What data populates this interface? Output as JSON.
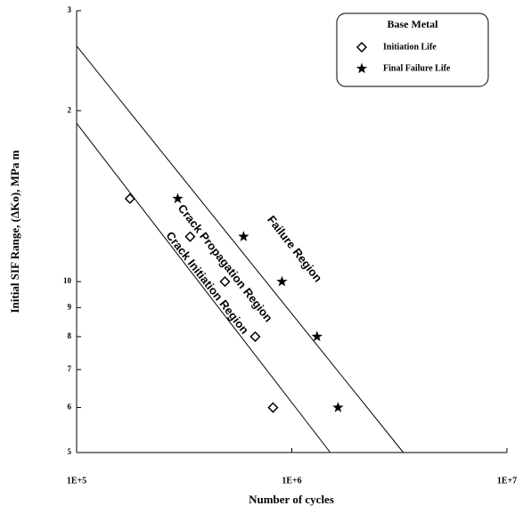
{
  "chart_data": {
    "type": "scatter",
    "xlabel": "Number of cycles",
    "ylabel": "Initial SIF Range, (ΔKo), MPa m",
    "xscale": "log",
    "yscale": "log",
    "xlim": [
      100000,
      10000000
    ],
    "xticks": [
      {
        "value": 100000,
        "label": "1E+5"
      },
      {
        "value": 1000000,
        "label": "1E+6"
      },
      {
        "value": 10000000,
        "label": "1E+7"
      }
    ],
    "ylim": [
      5,
      30
    ],
    "yticks": [
      5,
      6,
      7,
      8,
      9,
      10,
      {
        "value": 20,
        "label": "2"
      },
      {
        "value": 30,
        "label": "3"
      }
    ],
    "legend": {
      "title": "Base Metal",
      "position": "top-right"
    },
    "series": [
      {
        "name": "Initiation Life",
        "marker": "diamond",
        "color": "#000000",
        "x": [
          177000,
          337000,
          489000,
          676000,
          818000
        ],
        "values": [
          14,
          12,
          10,
          8,
          6
        ]
      },
      {
        "name": "Final Failure Life",
        "marker": "star",
        "color": "#000000",
        "x": [
          295000,
          597000,
          900000,
          1310000,
          1640000
        ],
        "values": [
          14,
          12,
          10,
          8,
          6
        ]
      }
    ],
    "lines": [
      {
        "x": [
          100000,
          1510000
        ],
        "values": [
          19,
          5
        ],
        "color": "#000000"
      },
      {
        "x": [
          100000,
          3300000
        ],
        "values": [
          26,
          5
        ],
        "color": "#000000"
      }
    ],
    "annotations": [
      {
        "text": "Crack Initiation Region"
      },
      {
        "text": "Crack Propagation Region"
      },
      {
        "text": "Failure Region"
      }
    ]
  }
}
